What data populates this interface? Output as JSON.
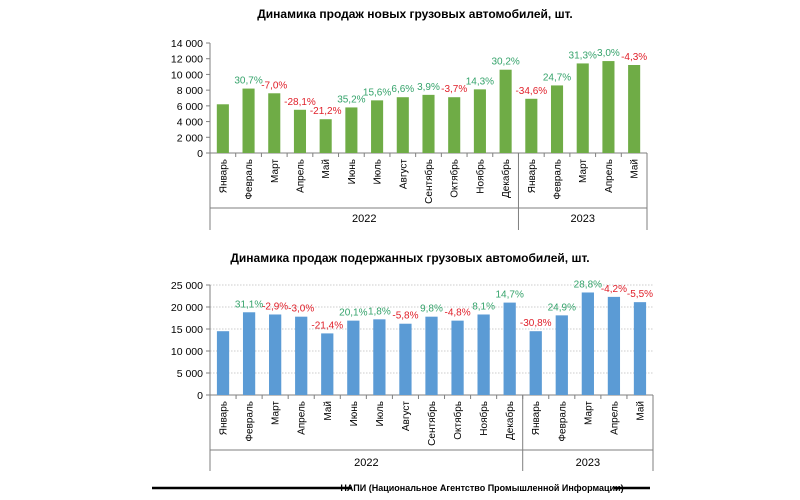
{
  "colors": {
    "positive": "#35a36b",
    "negative": "#e0202a",
    "axis": "#7f7f7f",
    "grid": "#9a9a9a"
  },
  "footer": {
    "text": "НАПИ (Национальное Агентство Промышленной Информации)"
  },
  "chart_data": [
    {
      "type": "bar",
      "title": "Динамика продаж новых грузовых автомобилей, шт.",
      "bar_color": "#6fac46",
      "ylim": [
        0,
        14000
      ],
      "yticks": [
        0,
        2000,
        4000,
        6000,
        8000,
        10000,
        12000,
        14000
      ],
      "ytick_labels": [
        "0",
        "2 000",
        "4 000",
        "6 000",
        "8 000",
        "10 000",
        "12 000",
        "14 000"
      ],
      "grid": false,
      "categories": [
        "Январь",
        "Февраль",
        "Март",
        "Апрель",
        "Май",
        "Июнь",
        "Июль",
        "Август",
        "Сентябрь",
        "Октябрь",
        "Ноябрь",
        "Декабрь",
        "Январь",
        "Февраль",
        "Март",
        "Апрель",
        "Май"
      ],
      "values": [
        6200,
        8200,
        7600,
        5500,
        4300,
        5800,
        6700,
        7100,
        7400,
        7100,
        8100,
        10600,
        6900,
        8600,
        11400,
        11700,
        11200
      ],
      "labels": [
        "",
        "30,7%",
        "-7,0%",
        "-28,1%",
        "-21,2%",
        "35,2%",
        "15,6%",
        "6,6%",
        "3,9%",
        "-3,7%",
        "14,3%",
        "30,2%",
        "-34,6%",
        "24,7%",
        "31,3%",
        "3,0%",
        "-4,3%"
      ],
      "year_groups": [
        {
          "label": "2022",
          "count": 12
        },
        {
          "label": "2023",
          "count": 5
        }
      ]
    },
    {
      "type": "bar",
      "title": "Динамика продаж подержанных грузовых автомобилей, шт.",
      "bar_color": "#5b9bd5",
      "ylim": [
        0,
        25000
      ],
      "yticks": [
        0,
        5000,
        10000,
        15000,
        20000,
        25000
      ],
      "ytick_labels": [
        "0",
        "5 000",
        "10 000",
        "15 000",
        "20 000",
        "25 000"
      ],
      "grid": true,
      "categories": [
        "Январь",
        "Февраль",
        "Март",
        "Апрель",
        "Май",
        "Июнь",
        "Июль",
        "Август",
        "Сентябрь",
        "Октябрь",
        "Ноябрь",
        "Декабрь",
        "Январь",
        "Февраль",
        "Март",
        "Апрель",
        "Май"
      ],
      "values": [
        14500,
        18800,
        18300,
        17800,
        14000,
        16900,
        17200,
        16200,
        17800,
        16900,
        18300,
        21000,
        14500,
        18100,
        23300,
        22300,
        21100
      ],
      "labels": [
        "",
        "31,1%",
        "-2,9%",
        "-3,0%",
        "-21,4%",
        "20,1%",
        "1,8%",
        "-5,8%",
        "9,8%",
        "-4,8%",
        "8,1%",
        "14,7%",
        "-30,8%",
        "24,9%",
        "28,8%",
        "-4,2%",
        "-5,5%"
      ],
      "year_groups": [
        {
          "label": "2022",
          "count": 12
        },
        {
          "label": "2023",
          "count": 5
        }
      ]
    }
  ]
}
